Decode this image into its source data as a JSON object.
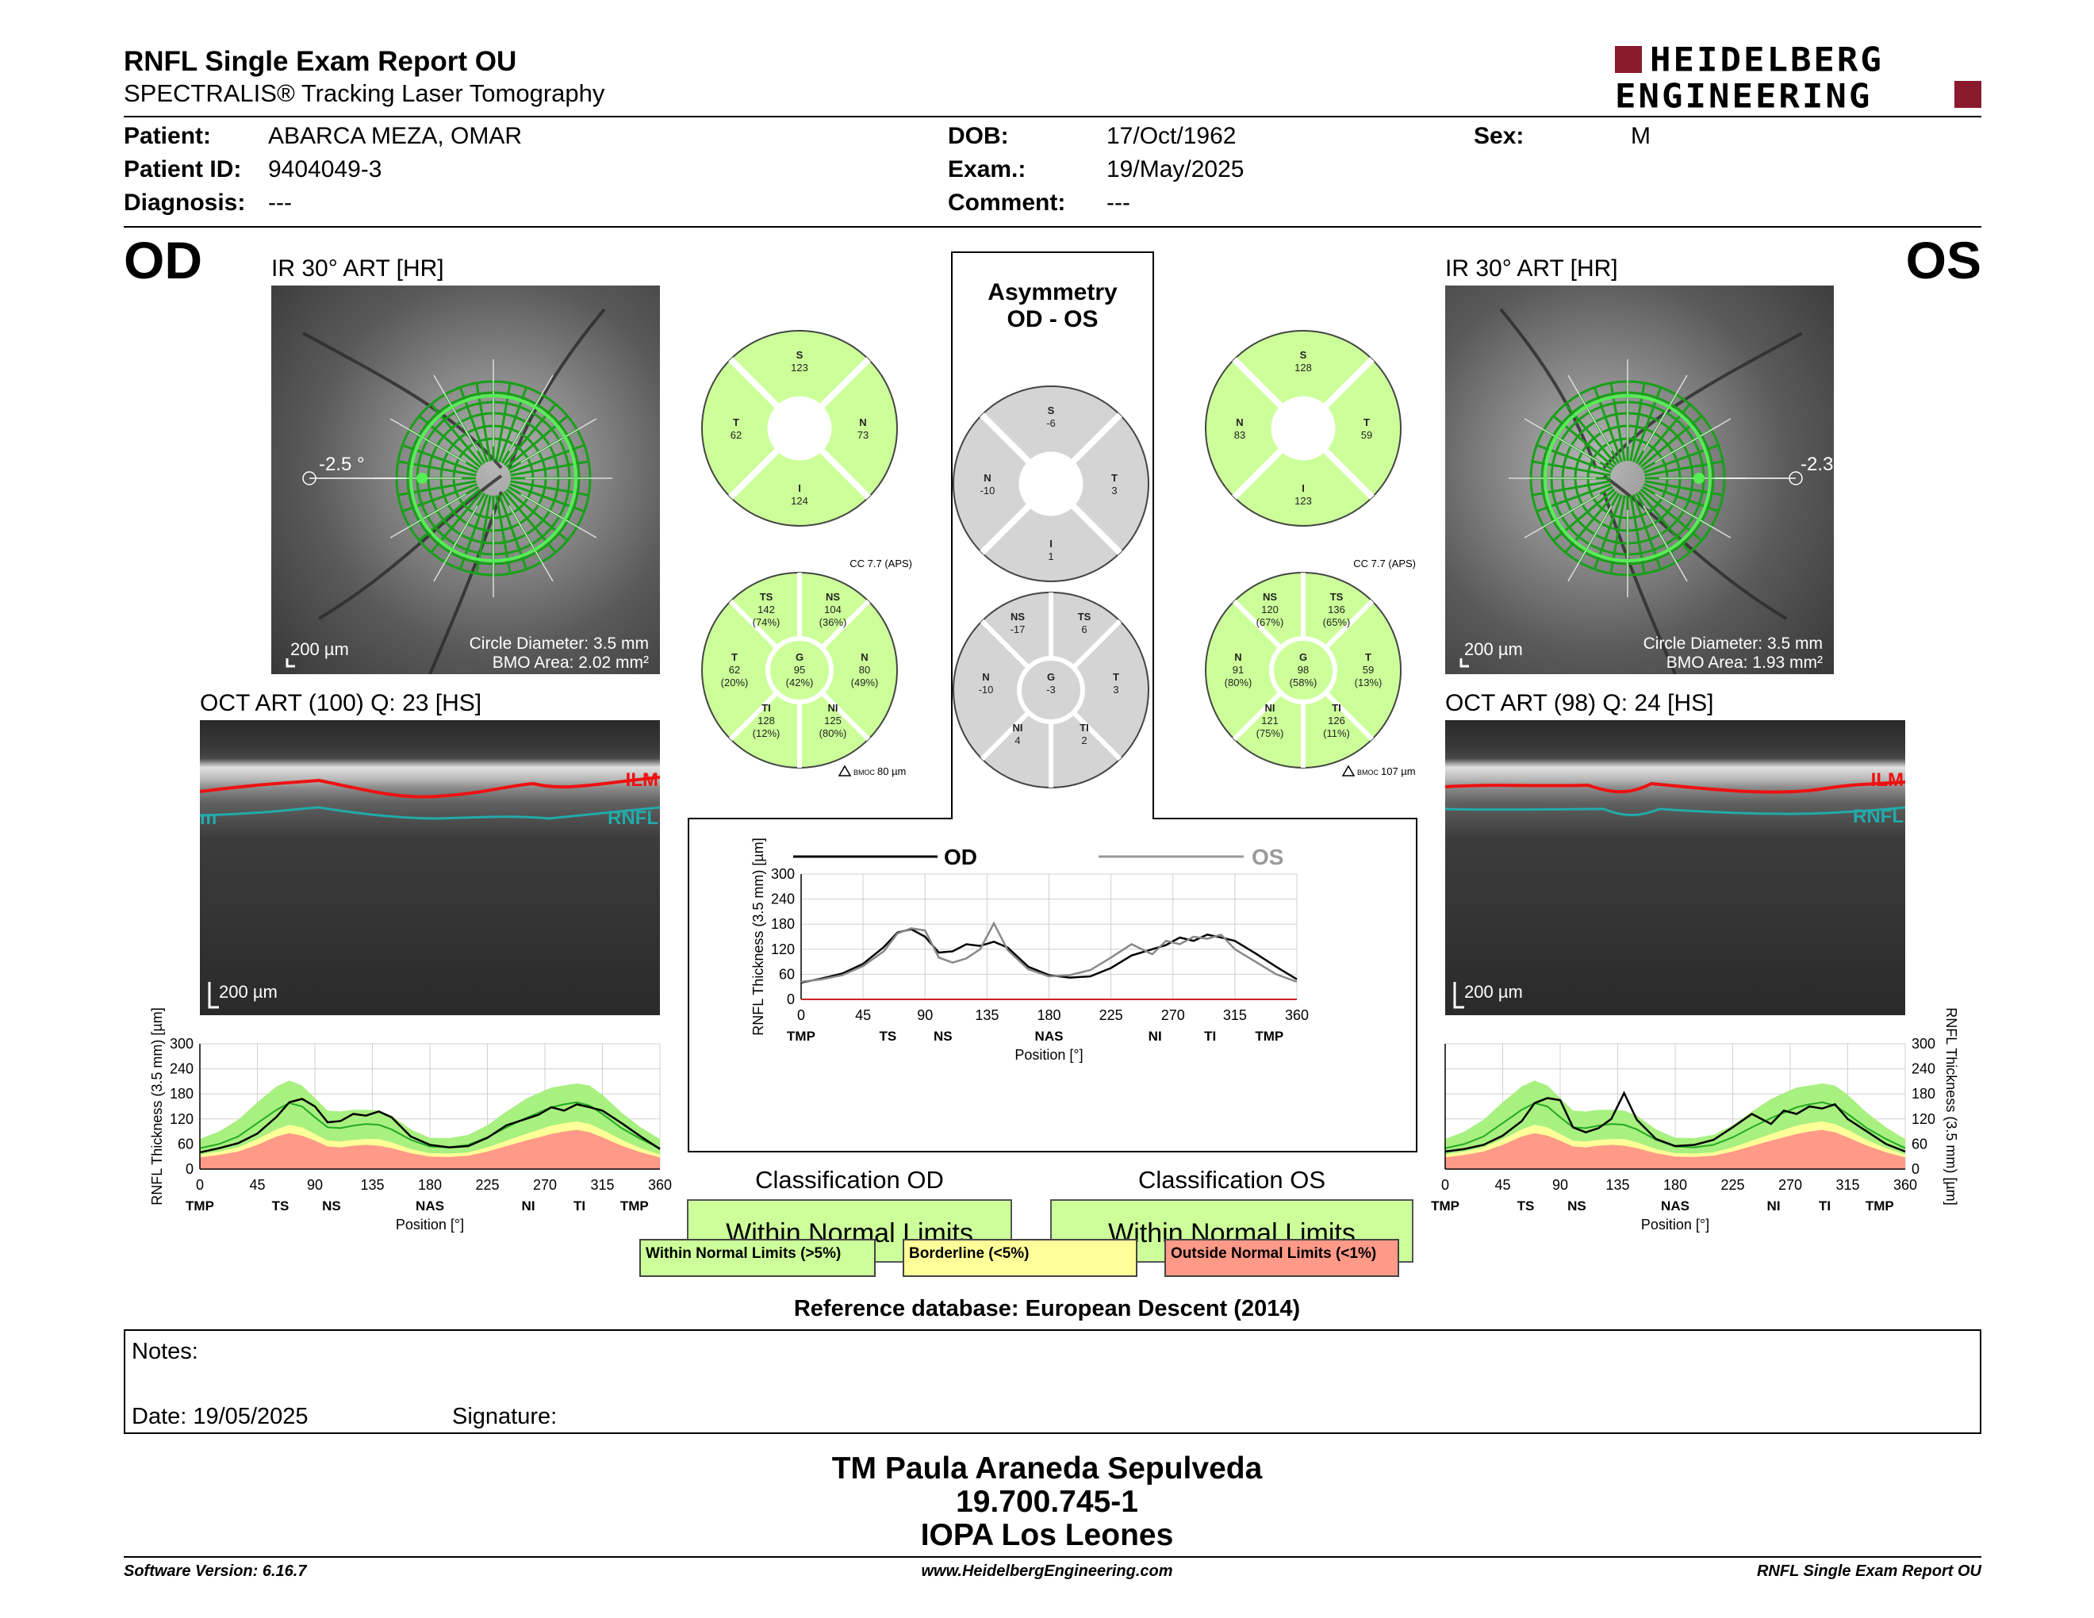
{
  "header": {
    "title": "RNFL Single Exam Report OU",
    "subtitle": "SPECTRALIS® Tracking Laser Tomography",
    "brand": [
      "HEIDELBERG",
      "ENGINEERING"
    ],
    "brand_color": "#8a1a2e"
  },
  "patient": {
    "patient_label": "Patient:",
    "patient": "ABARCA MEZA, OMAR",
    "id_label": "Patient ID:",
    "id": "9404049-3",
    "diagnosis_label": "Diagnosis:",
    "diagnosis": "---",
    "dob_label": "DOB:",
    "dob": "17/Oct/1962",
    "exam_label": "Exam.:",
    "exam": "19/May/2025",
    "comment_label": "Comment:",
    "comment": "---",
    "sex_label": "Sex:",
    "sex": "M"
  },
  "od": {
    "eye": "OD",
    "ir_title": "IR 30° ART [HR]",
    "angle": "-2.5 °",
    "scale": "200 µm",
    "circle_diameter": "Circle Diameter: 3.5 mm",
    "bmo_area": "BMO Area: 2.02 mm²",
    "oct_title": "OCT ART (100) Q: 23 [HS]",
    "oct_scale": "200 µm",
    "ilm": "ILM",
    "rnfl": "RNFL",
    "rnfl_cut": "m",
    "sectors4": {
      "S": "123",
      "T": "62",
      "N": "73",
      "I": "124"
    },
    "sectors6": {
      "TS": "142",
      "TS_pct": "(74%)",
      "NS": "104",
      "NS_pct": "(36%)",
      "T": "62",
      "T_pct": "(20%)",
      "G": "95",
      "G_pct": "(42%)",
      "N": "80",
      "N_pct": "(49%)",
      "TI": "128",
      "TI_pct": "(12%)",
      "NI": "125",
      "NI_pct": "(80%)"
    },
    "cc": "CC 7.7 (APS)",
    "bmo_label": "BMOC",
    "bmo_offset": "80 µm",
    "classification_title": "Classification OD",
    "classification": "Within Normal Limits"
  },
  "os": {
    "eye": "OS",
    "ir_title": "IR 30° ART [HR]",
    "angle": "-2.3",
    "scale": "200 µm",
    "circle_diameter": "Circle Diameter: 3.5 mm",
    "bmo_area": "BMO Area: 1.93 mm²",
    "oct_title": "OCT ART (98) Q: 24 [HS]",
    "oct_scale": "200 µm",
    "ilm": "ILM",
    "rnfl": "RNFL",
    "sectors4": {
      "S": "128",
      "N": "83",
      "T": "59",
      "I": "123"
    },
    "sectors6": {
      "NS": "120",
      "NS_pct": "(67%)",
      "TS": "136",
      "TS_pct": "(65%)",
      "N": "91",
      "N_pct": "(80%)",
      "G": "98",
      "G_pct": "(58%)",
      "T": "59",
      "T_pct": "(13%)",
      "NI": "121",
      "NI_pct": "(75%)",
      "TI": "126",
      "TI_pct": "(11%)"
    },
    "cc": "CC 7.7 (APS)",
    "bmo_label": "BMOC",
    "bmo_offset": "107 µm",
    "classification_title": "Classification OS",
    "classification": "Within Normal Limits"
  },
  "asym": {
    "title1": "Asymmetry",
    "title2": "OD - OS",
    "sectors4": {
      "S": "-6",
      "N": "-10",
      "T": "3",
      "I": "1"
    },
    "sectors6": {
      "NS": "-17",
      "TS": "6",
      "N": "-10",
      "G": "-3",
      "T": "3",
      "NI": "4",
      "TI": "2"
    },
    "legend_od": "OD",
    "legend_os": "OS"
  },
  "sector_labels": {
    "S": "S",
    "T": "T",
    "N": "N",
    "I": "I",
    "TS": "TS",
    "NS": "NS",
    "G": "G",
    "TI": "TI",
    "NI": "NI"
  },
  "legend": {
    "wnl": "Within Normal Limits (>5%)",
    "borderline": "Borderline (<5%)",
    "onl": "Outside Normal Limits (<1%)"
  },
  "colors": {
    "normal": "#ccff99",
    "normal_band": "#a8f080",
    "borderline": "#ffff99",
    "outside": "#ff9988",
    "asym_gray": "#d4d4d4",
    "ilm": "#ee1111",
    "rnfl": "#22aaaa",
    "grid_green": "#18a018"
  },
  "reference_db": "Reference database: European Descent (2014)",
  "notes": {
    "notes_label": "Notes:",
    "date_label": "Date: 19/05/2025",
    "signature_label": "Signature:"
  },
  "signature": {
    "line1": "TM Paula Araneda Sepulveda",
    "line2": "19.700.745-1",
    "line3": "IOPA Los Leones"
  },
  "footer": {
    "software": "Software Version: 6.16.7",
    "website": "www.HeidelbergEngineering.com",
    "report": "RNFL Single Exam Report OU"
  },
  "chart_data": [
    {
      "type": "line",
      "title": "OD",
      "xlabel": "Position [°]",
      "ylabel": "RNFL Thickness (3.5 mm) [µm]",
      "xlim": [
        0,
        360
      ],
      "ylim": [
        0,
        300
      ],
      "xticks": [
        0,
        45,
        90,
        135,
        180,
        225,
        270,
        315,
        360
      ],
      "yticks": [
        0,
        60,
        120,
        180,
        240,
        300
      ],
      "sector_ticks": [
        [
          "TMP",
          0
        ],
        [
          "TS",
          63
        ],
        [
          "NS",
          103
        ],
        [
          "NAS",
          180
        ],
        [
          "NI",
          257
        ],
        [
          "TI",
          297
        ],
        [
          "TMP",
          340
        ]
      ],
      "x": [
        0,
        15,
        30,
        45,
        60,
        70,
        80,
        90,
        100,
        110,
        120,
        130,
        140,
        150,
        165,
        180,
        195,
        210,
        225,
        240,
        255,
        265,
        275,
        285,
        295,
        305,
        315,
        330,
        345,
        360
      ],
      "series": [
        {
          "name": "OD",
          "values": [
            40,
            50,
            62,
            85,
            125,
            160,
            168,
            150,
            112,
            115,
            132,
            128,
            138,
            124,
            78,
            58,
            52,
            55,
            75,
            105,
            120,
            130,
            148,
            140,
            155,
            148,
            140,
            110,
            78,
            48
          ]
        }
      ],
      "bands": {
        "normal_upper": [
          72,
          90,
          118,
          160,
          198,
          212,
          200,
          170,
          140,
          138,
          142,
          142,
          140,
          128,
          95,
          75,
          74,
          82,
          105,
          138,
          168,
          182,
          195,
          200,
          205,
          200,
          178,
          135,
          100,
          72
        ],
        "normal_mid": [
          50,
          60,
          78,
          110,
          142,
          158,
          150,
          124,
          100,
          98,
          104,
          108,
          106,
          95,
          70,
          54,
          52,
          58,
          76,
          100,
          122,
          135,
          148,
          155,
          160,
          152,
          132,
          98,
          72,
          50
        ],
        "borderline_upper": [
          35,
          42,
          52,
          72,
          95,
          106,
          100,
          84,
          68,
          66,
          70,
          72,
          72,
          64,
          48,
          38,
          37,
          40,
          52,
          68,
          84,
          94,
          104,
          110,
          114,
          108,
          94,
          70,
          50,
          35
        ],
        "outside_upper": [
          28,
          34,
          42,
          58,
          78,
          86,
          80,
          68,
          54,
          52,
          56,
          58,
          56,
          50,
          38,
          30,
          29,
          32,
          42,
          55,
          68,
          76,
          84,
          90,
          94,
          88,
          76,
          56,
          40,
          28
        ]
      }
    },
    {
      "type": "line",
      "title": "Asymmetry OD - OS",
      "xlabel": "Position [°]",
      "ylabel": "RNFL Thickness (3.5 mm) [µm]",
      "xlim": [
        0,
        360
      ],
      "ylim": [
        0,
        300
      ],
      "xticks": [
        0,
        45,
        90,
        135,
        180,
        225,
        270,
        315,
        360
      ],
      "yticks": [
        0,
        60,
        120,
        180,
        240,
        300
      ],
      "sector_ticks": [
        [
          "TMP",
          0
        ],
        [
          "TS",
          63
        ],
        [
          "NS",
          103
        ],
        [
          "NAS",
          180
        ],
        [
          "NI",
          257
        ],
        [
          "TI",
          297
        ],
        [
          "TMP",
          340
        ]
      ],
      "x": [
        0,
        15,
        30,
        45,
        60,
        70,
        80,
        90,
        100,
        110,
        120,
        130,
        140,
        150,
        165,
        180,
        195,
        210,
        225,
        240,
        255,
        265,
        275,
        285,
        295,
        305,
        315,
        330,
        345,
        360
      ],
      "series": [
        {
          "name": "OD",
          "values": [
            40,
            50,
            62,
            85,
            125,
            160,
            168,
            150,
            112,
            115,
            132,
            128,
            138,
            124,
            78,
            58,
            52,
            55,
            75,
            105,
            120,
            130,
            148,
            140,
            155,
            148,
            140,
            110,
            78,
            48
          ]
        },
        {
          "name": "OS",
          "values": [
            42,
            48,
            58,
            80,
            115,
            158,
            170,
            165,
            100,
            88,
            98,
            120,
            182,
            118,
            72,
            55,
            58,
            70,
            100,
            132,
            108,
            140,
            132,
            150,
            145,
            155,
            120,
            90,
            60,
            42
          ]
        }
      ]
    },
    {
      "type": "line",
      "title": "OS",
      "xlabel": "Position [°]",
      "ylabel": "RNFL Thickness (3.5 mm) [µm]",
      "xlim": [
        0,
        360
      ],
      "ylim": [
        0,
        300
      ],
      "xticks": [
        0,
        45,
        90,
        135,
        180,
        225,
        270,
        315,
        360
      ],
      "yticks": [
        0,
        60,
        120,
        180,
        240,
        300
      ],
      "sector_ticks": [
        [
          "TMP",
          0
        ],
        [
          "TS",
          63
        ],
        [
          "NS",
          103
        ],
        [
          "NAS",
          180
        ],
        [
          "NI",
          257
        ],
        [
          "TI",
          297
        ],
        [
          "TMP",
          340
        ]
      ],
      "x": [
        0,
        15,
        30,
        45,
        60,
        70,
        80,
        90,
        100,
        110,
        120,
        130,
        140,
        150,
        165,
        180,
        195,
        210,
        225,
        240,
        255,
        265,
        275,
        285,
        295,
        305,
        315,
        330,
        345,
        360
      ],
      "series": [
        {
          "name": "OS",
          "values": [
            42,
            48,
            58,
            80,
            115,
            158,
            170,
            165,
            100,
            88,
            98,
            120,
            182,
            118,
            72,
            55,
            58,
            70,
            100,
            132,
            108,
            140,
            132,
            150,
            145,
            155,
            120,
            90,
            60,
            42
          ]
        }
      ],
      "bands": {
        "normal_upper": [
          72,
          90,
          118,
          160,
          198,
          212,
          200,
          170,
          140,
          138,
          142,
          142,
          140,
          128,
          95,
          75,
          74,
          82,
          105,
          138,
          168,
          182,
          195,
          200,
          205,
          200,
          178,
          135,
          100,
          72
        ],
        "normal_mid": [
          50,
          60,
          78,
          110,
          142,
          158,
          150,
          124,
          100,
          98,
          104,
          108,
          106,
          95,
          70,
          54,
          52,
          58,
          76,
          100,
          122,
          135,
          148,
          155,
          160,
          152,
          132,
          98,
          72,
          50
        ],
        "borderline_upper": [
          35,
          42,
          52,
          72,
          95,
          106,
          100,
          84,
          68,
          66,
          70,
          72,
          72,
          64,
          48,
          38,
          37,
          40,
          52,
          68,
          84,
          94,
          104,
          110,
          114,
          108,
          94,
          70,
          50,
          35
        ],
        "outside_upper": [
          28,
          34,
          42,
          58,
          78,
          86,
          80,
          68,
          54,
          52,
          56,
          58,
          56,
          50,
          38,
          30,
          29,
          32,
          42,
          55,
          68,
          76,
          84,
          90,
          94,
          88,
          76,
          56,
          40,
          28
        ]
      }
    }
  ]
}
